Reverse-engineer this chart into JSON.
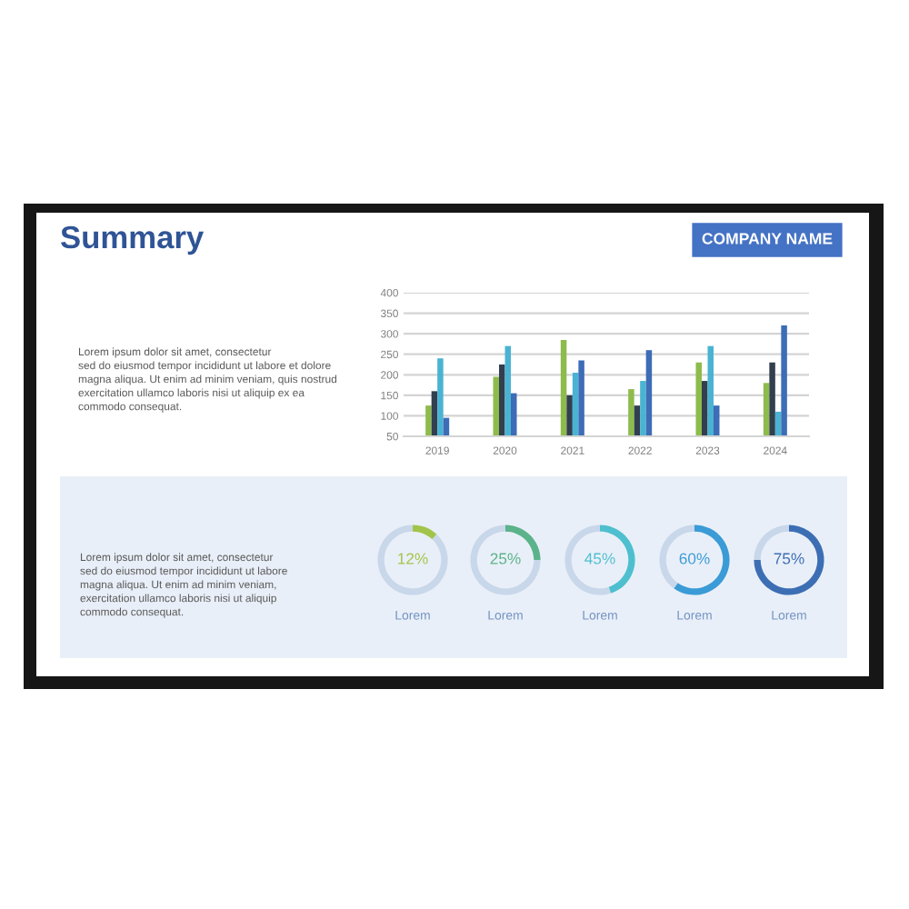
{
  "chart_data": [
    {
      "type": "other",
      "title": "Summary",
      "annotations": [
        "COMPANY NAME",
        "Lorem ipsum dolor sit amet, consectetur\nsed do eiusmod tempor incididunt ut labore et dolore\nmagna aliqua. Ut enim ad minim veniam, quis nostrud\nexercitation ullamco laboris nisi ut aliquip ex ea\ncommodo consequat."
      ]
    },
    {
      "type": "bar",
      "categories": [
        "2019",
        "2020",
        "2021",
        "2022",
        "2023",
        "2024"
      ],
      "series": [
        {
          "color": "#8dbb4c",
          "values": [
            125,
            195,
            285,
            165,
            230,
            180
          ]
        },
        {
          "color": "#323f4f",
          "values": [
            160,
            225,
            150,
            125,
            185,
            230
          ]
        },
        {
          "color": "#4ab3d3",
          "values": [
            240,
            270,
            205,
            185,
            270,
            110
          ]
        },
        {
          "color": "#3c6db6",
          "values": [
            95,
            155,
            235,
            260,
            125,
            320
          ]
        }
      ],
      "ylim": [
        50,
        400
      ],
      "yticks": [
        50,
        100,
        150,
        200,
        250,
        300,
        350,
        400
      ],
      "grid": "y"
    },
    {
      "type": "other",
      "annotations": [
        "Lorem ipsum dolor sit amet, consectetur\nsed do eiusmod tempor incididunt ut labore\nmagna aliqua. Ut enim ad minim veniam,\nexercitation ullamco laboris nisi ut aliquip\ncommodo consequat."
      ]
    },
    {
      "type": "donut",
      "title": "Lorem",
      "categories": [
        null,
        null
      ],
      "values": [
        12,
        88
      ],
      "colors": [
        "#a2c44a",
        "#c8d7ea"
      ],
      "value_labels": [
        "12%",
        null
      ]
    },
    {
      "type": "donut",
      "title": "Lorem",
      "categories": [
        null,
        null
      ],
      "values": [
        25,
        75
      ],
      "colors": [
        "#5ab38a",
        "#c8d7ea"
      ],
      "value_labels": [
        "25%",
        null
      ]
    },
    {
      "type": "donut",
      "title": "Lorem",
      "categories": [
        null,
        null
      ],
      "values": [
        45,
        55
      ],
      "colors": [
        "#4ebfcf",
        "#c8d7ea"
      ],
      "value_labels": [
        "45%",
        null
      ]
    },
    {
      "type": "donut",
      "title": "Lorem",
      "categories": [
        null,
        null
      ],
      "values": [
        60,
        40
      ],
      "colors": [
        "#3a9bd6",
        "#c8d7ea"
      ],
      "value_labels": [
        "60%",
        null
      ]
    },
    {
      "type": "donut",
      "title": "Lorem",
      "categories": [
        null,
        null
      ],
      "values": [
        75,
        25
      ],
      "colors": [
        "#3c6eb4",
        "#c8d7ea"
      ],
      "value_labels": [
        "75%",
        null
      ]
    }
  ]
}
